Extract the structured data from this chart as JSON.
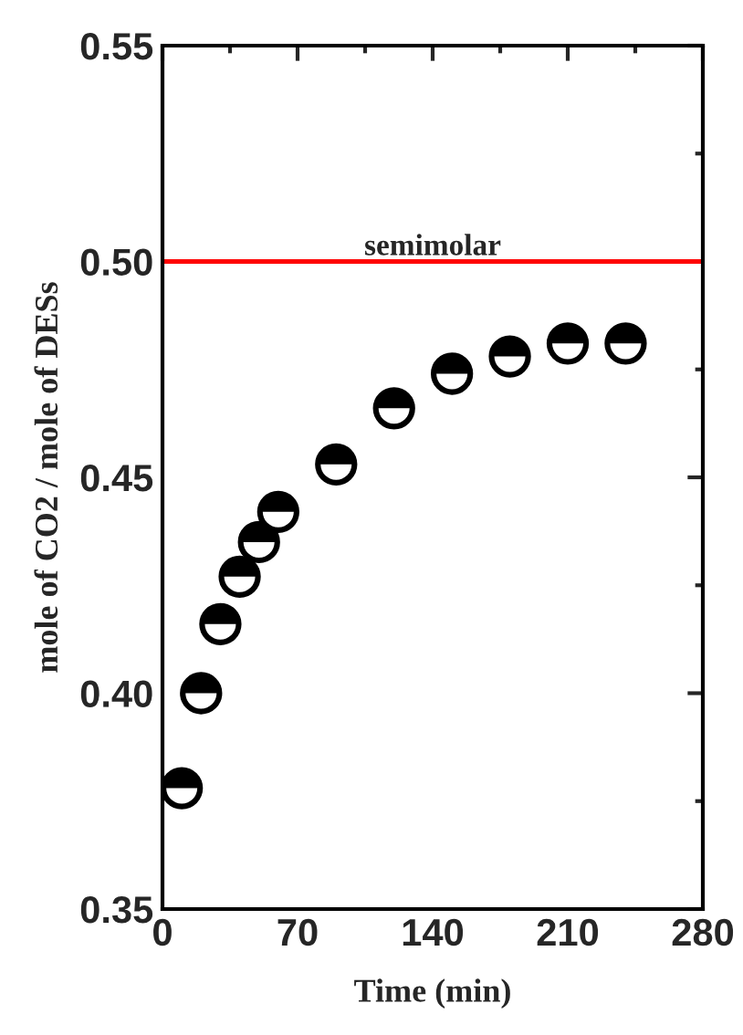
{
  "chart_data": {
    "type": "scatter",
    "xlabel": "Time (min)",
    "ylabel": "mole of CO2 / mole of DESs",
    "x": [
      10,
      20,
      30,
      40,
      50,
      60,
      90,
      120,
      150,
      180,
      210,
      240
    ],
    "series": [
      {
        "color": "#000000",
        "values": [
          0.378,
          0.4,
          0.416,
          0.427,
          0.435,
          0.442,
          0.453,
          0.466,
          0.474,
          0.478,
          0.481,
          0.481
        ]
      }
    ],
    "marker": "circle",
    "xlim": [
      0,
      280
    ],
    "xticks": [
      0,
      70,
      140,
      210,
      280
    ],
    "ylim": [
      0.35,
      0.55
    ],
    "yticks": [
      {
        "value": 0.35,
        "label": "0.35"
      },
      {
        "value": 0.4,
        "label": "0.40"
      },
      {
        "value": 0.45,
        "label": "0.45"
      },
      {
        "value": 0.5,
        "label": "0.50"
      },
      {
        "value": 0.55,
        "label": "0.55"
      }
    ],
    "ref_lines": [
      {
        "axis": "y",
        "value": 0.5,
        "label": "semimolar",
        "color": "#ff0000",
        "line_style": "solid"
      }
    ],
    "grid": false,
    "legend": false
  }
}
